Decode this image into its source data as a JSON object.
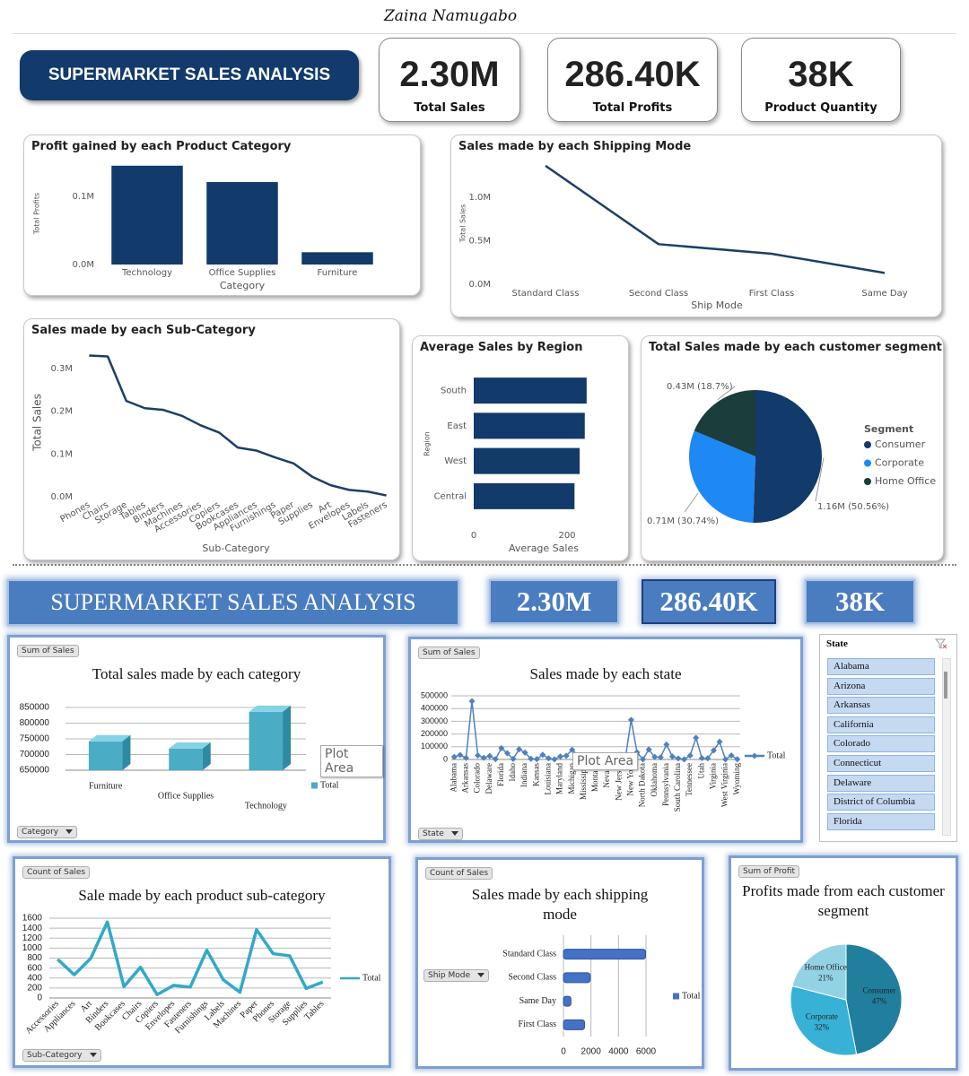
{
  "author": "Zaina Namugabo",
  "dashboard_1": {
    "title": "SUPERMARKET SALES ANALYSIS",
    "kpis": [
      {
        "value": "2.30M",
        "label": "Total Sales"
      },
      {
        "value": "286.40K",
        "label": "Total Profits"
      },
      {
        "value": "38K",
        "label": "Product Quantity"
      }
    ]
  },
  "dashboard_2": {
    "title": "SUPERMARKET SALES ANALYSIS",
    "kpis": [
      "2.30M",
      "286.40K",
      "38K"
    ],
    "slicer": {
      "title": "State",
      "items": [
        "Alabama",
        "Arizona",
        "Arkansas",
        "California",
        "Colorado",
        "Connecticut",
        "Delaware",
        "District of Columbia",
        "Florida"
      ]
    }
  },
  "chart_data": [
    {
      "type": "bar",
      "title": "Profit gained by each Product Category",
      "x_label": "Category",
      "y_label": "Total Profits",
      "categories": [
        "Technology",
        "Office Supplies",
        "Furniture"
      ],
      "values": [
        145000,
        121000,
        18000
      ],
      "color": "#123a6b",
      "ylim": [
        0,
        150000
      ],
      "yticks": [
        {
          "value": 0,
          "label": "0.0M"
        },
        {
          "value": 100000,
          "label": "0.1M"
        }
      ]
    },
    {
      "type": "line",
      "title": "Sales made by each Shipping Mode",
      "x_label": "Ship Mode",
      "y_label": "Total Sales",
      "categories": [
        "Standard Class",
        "Second Class",
        "First Class",
        "Same Day"
      ],
      "values": [
        1360000,
        460000,
        350000,
        130000
      ],
      "color": "#1d3f66",
      "ylim": [
        0,
        1400000
      ],
      "yticks": [
        {
          "value": 0,
          "label": "0.0M"
        },
        {
          "value": 500000,
          "label": "0.5M"
        },
        {
          "value": 1000000,
          "label": "1.0M"
        }
      ]
    },
    {
      "type": "line",
      "title": "Sales made by each Sub-Category",
      "x_label": "Sub-Category",
      "y_label": "Total Sales",
      "categories": [
        "Phones",
        "Chairs",
        "Storage",
        "Tables",
        "Binders",
        "Machines",
        "Accessories",
        "Copiers",
        "Bookcases",
        "Appliances",
        "Furnishings",
        "Paper",
        "Supplies",
        "Art",
        "Envelopes",
        "Labels",
        "Fasteners"
      ],
      "values": [
        330000,
        328000,
        224000,
        207000,
        203000,
        189000,
        167000,
        150000,
        115000,
        108000,
        92000,
        78000,
        47000,
        27000,
        16000,
        12000,
        3000
      ],
      "color": "#1d3f66",
      "ylim": [
        0,
        350000
      ],
      "yticks": [
        {
          "value": 0,
          "label": "0.0M"
        },
        {
          "value": 100000,
          "label": "0.1M"
        },
        {
          "value": 200000,
          "label": "0.2M"
        },
        {
          "value": 300000,
          "label": "0.3M"
        }
      ]
    },
    {
      "type": "bar",
      "orientation": "horizontal",
      "title": "Average Sales by Region",
      "x_label": "Average Sales",
      "y_label": "Region",
      "categories": [
        "South",
        "East",
        "West",
        "Central"
      ],
      "values": [
        242,
        238,
        227,
        216
      ],
      "color": "#123a6b",
      "xlim": [
        0,
        250
      ],
      "xticks": [
        0,
        200
      ]
    },
    {
      "type": "pie",
      "title": "Total Sales made by each customer segment",
      "legend_title": "Segment",
      "categories": [
        "Consumer",
        "Corporate",
        "Home Office"
      ],
      "values": [
        50.56,
        30.74,
        18.7
      ],
      "value_labels": [
        "1.16M (50.56%)",
        "0.71M (30.74%)",
        "0.43M (18.7%)"
      ],
      "colors": [
        "#123a6b",
        "#1e88f5",
        "#1b3d3b"
      ]
    },
    {
      "type": "bar",
      "three_d": true,
      "title": "Total sales made by each category",
      "field_buttons": [
        "Sum of Sales",
        "Category"
      ],
      "tooltip": "Plot Area",
      "grid": true,
      "categories": [
        "Furniture",
        "Office Supplies",
        "Technology"
      ],
      "series": [
        {
          "name": "Total",
          "color": "#4bacc6",
          "values": [
            742000,
            719000,
            836000
          ]
        }
      ],
      "ylim": [
        650000,
        850000
      ],
      "yticks": [
        650000,
        700000,
        750000,
        800000,
        850000
      ]
    },
    {
      "type": "line",
      "title": "Sales made by each state",
      "field_buttons": [
        "Sum of Sales",
        "State"
      ],
      "tooltip": "Plot Area",
      "grid": true,
      "markers": true,
      "categories": [
        "Alabama",
        null,
        "Arkansas",
        null,
        "Colorado",
        null,
        "Delaware",
        null,
        "Florida",
        null,
        "Idaho",
        null,
        "Indiana",
        null,
        "Kansas",
        null,
        "Louisiana",
        null,
        "Maryland",
        null,
        "Michigan",
        null,
        "Mississippi",
        null,
        "Montana",
        null,
        "Nevada",
        null,
        "New Jersey",
        null,
        "New York",
        null,
        "North Dakota",
        null,
        "Oklahoma",
        null,
        "Pennsylvania",
        null,
        "South Carolina",
        null,
        "Tennessee",
        null,
        "Utah",
        null,
        "Virginia",
        null,
        "West Virginia",
        null,
        "Wyoming"
      ],
      "series": [
        {
          "name": "Total",
          "color": "#4f81bd",
          "values": [
            20000,
            35000,
            12000,
            458000,
            32000,
            13000,
            27000,
            3000,
            89000,
            49000,
            4000,
            80000,
            54000,
            5000,
            3000,
            37000,
            9000,
            1000,
            24000,
            29000,
            76000,
            30000,
            11000,
            22000,
            6000,
            7000,
            17000,
            7000,
            36000,
            5000,
            311000,
            56000,
            1000,
            78000,
            20000,
            17000,
            117000,
            23000,
            8000,
            1000,
            31000,
            170000,
            11000,
            9000,
            71000,
            139000,
            1000,
            32000,
            2000
          ]
        }
      ],
      "ylim": [
        0,
        500000
      ],
      "yticks": [
        0,
        100000,
        200000,
        300000,
        400000,
        500000
      ]
    },
    {
      "type": "line",
      "title": "Sale made by each product sub-category",
      "field_buttons": [
        "Count of Sales",
        "Sub-Category"
      ],
      "grid": true,
      "categories": [
        "Accessories",
        "Appliances",
        "Art",
        "Binders",
        "Bookcases",
        "Chairs",
        "Copiers",
        "Envelopes",
        "Fasteners",
        "Furnishings",
        "Labels",
        "Machines",
        "Paper",
        "Phones",
        "Storage",
        "Supplies",
        "Tables"
      ],
      "series": [
        {
          "name": "Total",
          "color": "#31a9c9",
          "values": [
            775,
            466,
            796,
            1523,
            228,
            617,
            68,
            254,
            217,
            957,
            364,
            115,
            1370,
            889,
            846,
            190,
            319
          ]
        }
      ],
      "ylim": [
        0,
        1600
      ],
      "yticks": [
        0,
        200,
        400,
        600,
        800,
        1000,
        1200,
        1400,
        1600
      ]
    },
    {
      "type": "bar",
      "orientation": "horizontal",
      "title": "Sales made by each shipping mode",
      "field_buttons": [
        "Count of Sales",
        "Ship Mode"
      ],
      "grid": true,
      "categories": [
        "Standard Class",
        "Second Class",
        "Same Day",
        "First Class"
      ],
      "series": [
        {
          "name": "Total",
          "color": "#4472c4",
          "values": [
            5968,
            1945,
            543,
            1538
          ]
        }
      ],
      "xlim": [
        0,
        6000
      ],
      "xticks": [
        0,
        2000,
        4000,
        6000
      ]
    },
    {
      "type": "pie",
      "title": "Profits made from each customer segment",
      "field_buttons": [
        "Sum of Profit"
      ],
      "categories": [
        "Consumer",
        "Corporate",
        "Home Office"
      ],
      "values": [
        47,
        32,
        21
      ],
      "value_labels": [
        "47%",
        "32%",
        "21%"
      ],
      "colors": [
        "#1f7f9c",
        "#38b1d6",
        "#93d2e4"
      ]
    }
  ]
}
